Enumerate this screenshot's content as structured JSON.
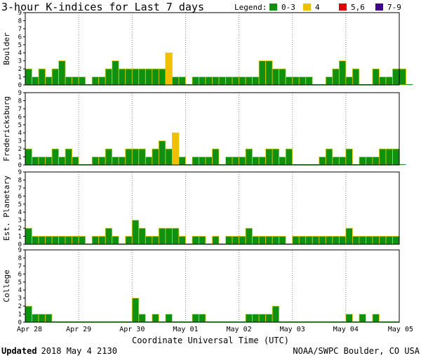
{
  "header": {
    "title": "3-hour K-indices for Last 7 days",
    "legend_label": "Legend:",
    "legend_items": [
      {
        "label": "0-3",
        "color": "#109010"
      },
      {
        "label": "4",
        "color": "#f0c000"
      },
      {
        "label": "5,6",
        "color": "#e00000"
      },
      {
        "label": "7-9",
        "color": "#400090"
      }
    ]
  },
  "footer": {
    "updated_label": "Updated",
    "updated_value": "2018 May  4 2130",
    "source": "NOAA/SWPC Boulder, CO USA"
  },
  "chart_data": {
    "type": "bar",
    "xlabel": "Coordinate Universal Time (UTC)",
    "x_tick_labels": [
      "Apr 28",
      "Apr 29",
      "Apr 30",
      "May 01",
      "May 02",
      "May 03",
      "May 04",
      "May 05"
    ],
    "ylim": [
      0,
      9
    ],
    "y_ticks": [
      0,
      1,
      2,
      3,
      4,
      5,
      6,
      7,
      8,
      9
    ],
    "grid": true,
    "bins_per_day": 8,
    "color_scale": {
      "0-3": "#109010",
      "4": "#f0c000",
      "5,6": "#e00000",
      "7-9": "#400090"
    },
    "series": [
      {
        "name": "Boulder",
        "values": [
          2,
          1,
          2,
          1,
          2,
          3,
          1,
          1,
          1,
          0,
          1,
          1,
          2,
          3,
          2,
          2,
          2,
          2,
          2,
          2,
          2,
          4,
          1,
          1,
          0,
          1,
          1,
          1,
          1,
          1,
          1,
          1,
          1,
          1,
          1,
          3,
          3,
          2,
          2,
          1,
          1,
          1,
          1,
          0,
          0,
          1,
          2,
          3,
          1,
          2,
          0,
          0,
          2,
          1,
          1,
          2,
          2,
          0
        ]
      },
      {
        "name": "Fredericksburg",
        "values": [
          2,
          1,
          1,
          1,
          2,
          1,
          2,
          1,
          0,
          0,
          1,
          1,
          2,
          1,
          1,
          2,
          2,
          2,
          1,
          2,
          3,
          2,
          4,
          1,
          0,
          1,
          1,
          1,
          2,
          0,
          1,
          1,
          1,
          2,
          1,
          1,
          2,
          2,
          1,
          2,
          0,
          0,
          0,
          0,
          1,
          2,
          1,
          1,
          2,
          0,
          1,
          1,
          1,
          2,
          2,
          2,
          0
        ]
      },
      {
        "name": "Est. Planetary",
        "values": [
          2,
          1,
          1,
          1,
          1,
          1,
          1,
          1,
          1,
          0,
          1,
          1,
          2,
          1,
          0,
          1,
          3,
          2,
          1,
          1,
          2,
          2,
          2,
          1,
          0,
          1,
          1,
          0,
          1,
          0,
          1,
          1,
          1,
          2,
          1,
          1,
          1,
          1,
          1,
          0,
          1,
          1,
          1,
          1,
          1,
          1,
          1,
          1,
          2,
          1,
          1,
          1,
          1,
          1,
          1,
          1
        ]
      },
      {
        "name": "College",
        "values": [
          2,
          1,
          1,
          1,
          0,
          0,
          0,
          0,
          0,
          0,
          0,
          0,
          0,
          0,
          0,
          0,
          3,
          1,
          0,
          1,
          0,
          1,
          0,
          0,
          0,
          1,
          1,
          0,
          0,
          0,
          0,
          0,
          0,
          1,
          1,
          1,
          1,
          2,
          0,
          0,
          0,
          0,
          0,
          0,
          0,
          0,
          0,
          0,
          1,
          0,
          1,
          0,
          1,
          0,
          0,
          0
        ]
      }
    ]
  }
}
